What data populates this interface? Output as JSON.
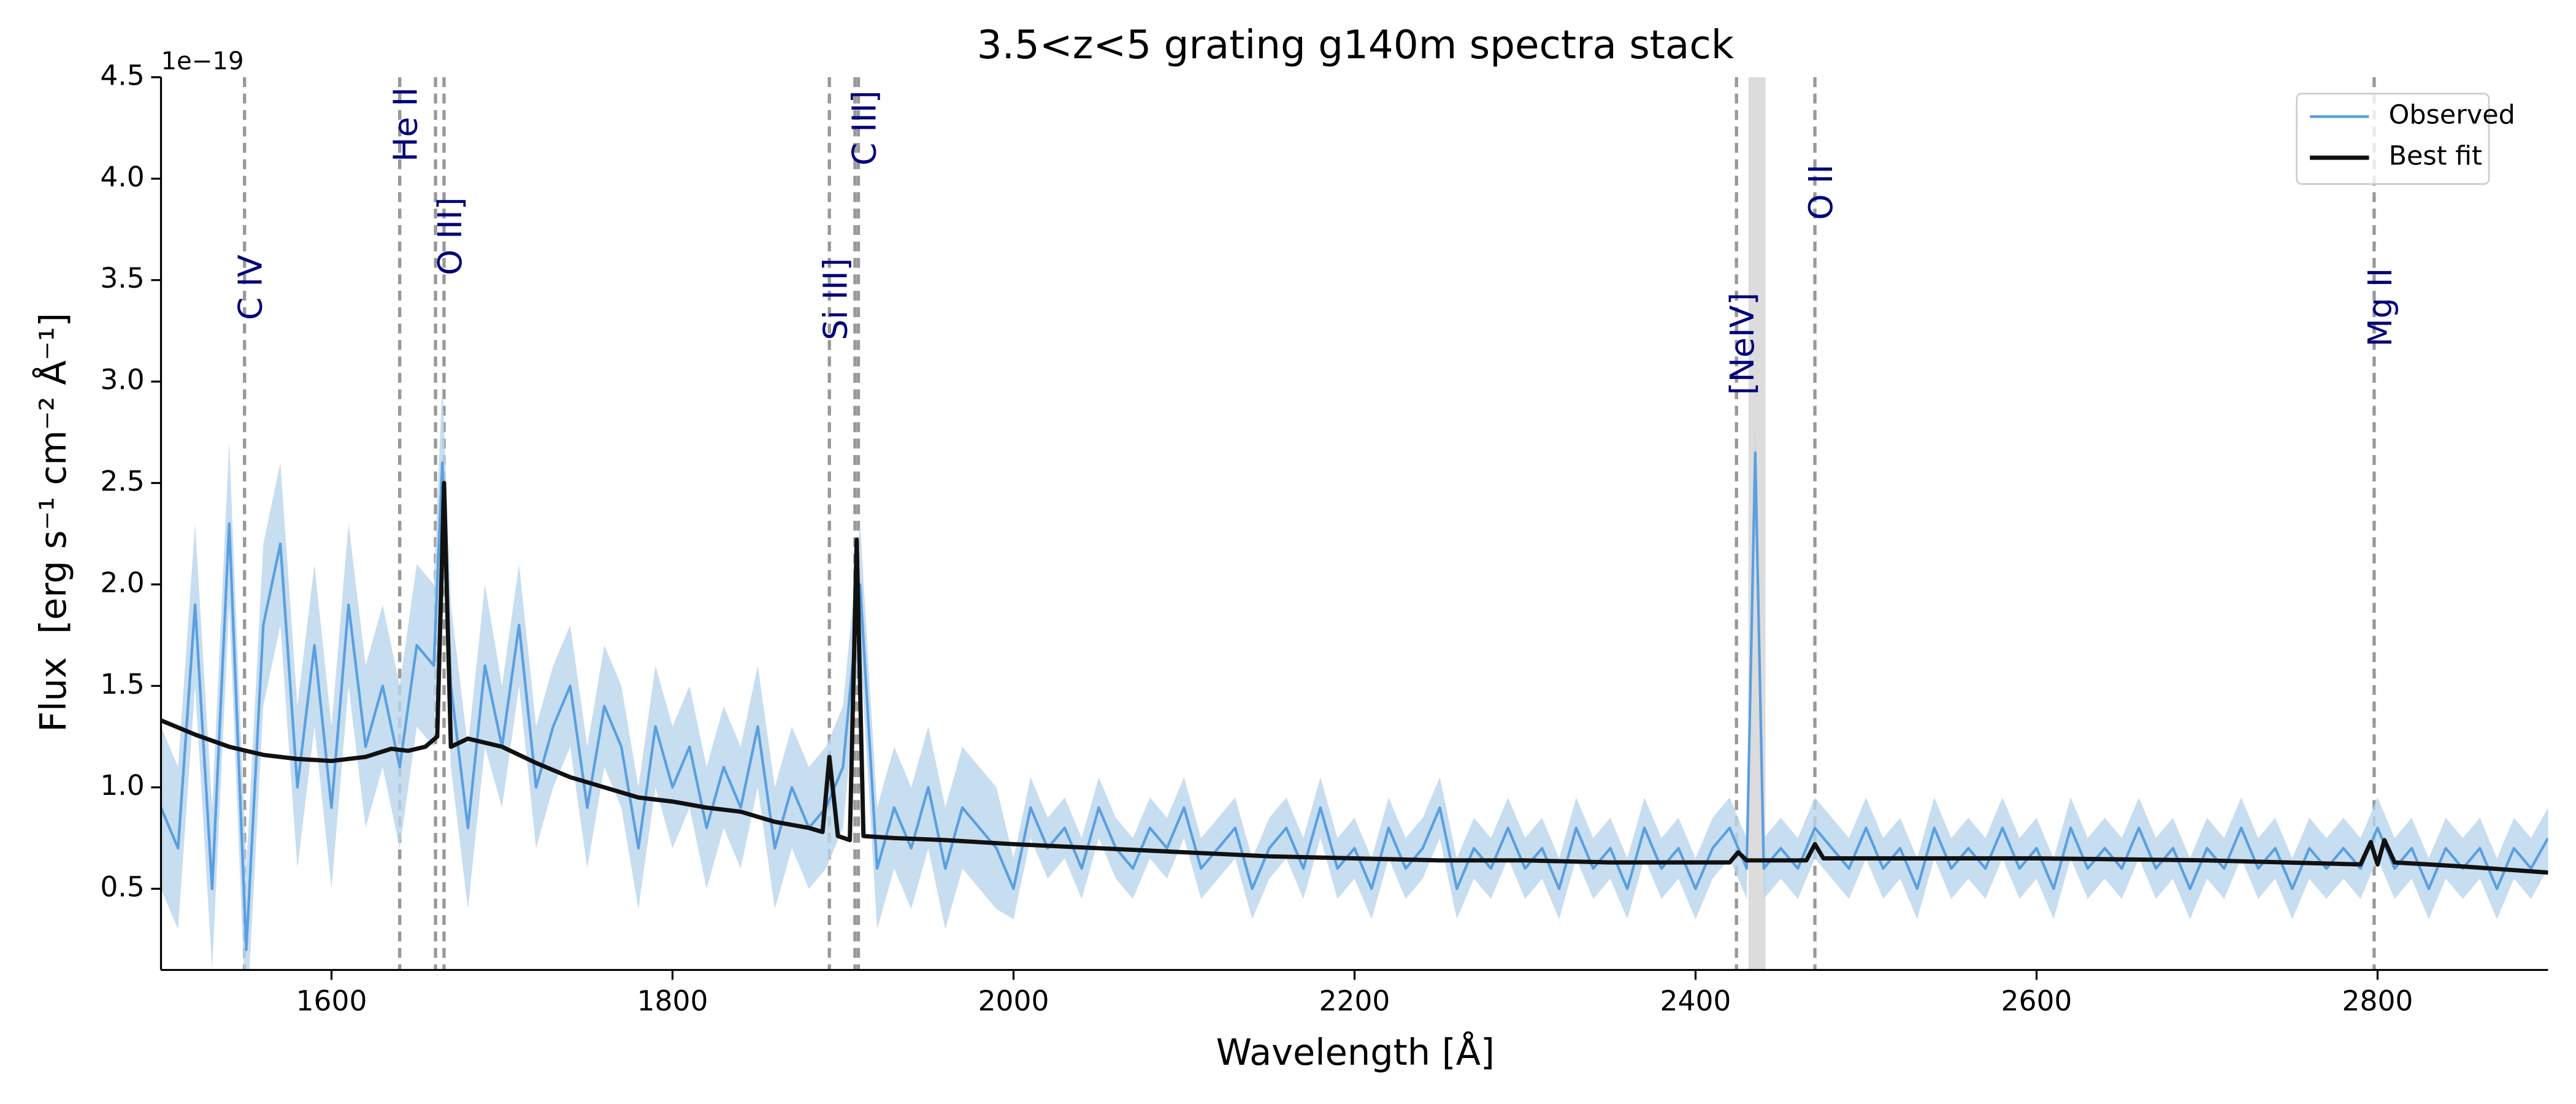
{
  "chart_data": {
    "type": "line",
    "title": "3.5<z<5 grating g140m spectra stack",
    "x_label": "Wavelength [Å]",
    "y_label": "Flux  [erg s⁻¹ cm⁻² Å⁻¹]",
    "y_offset_label": "1e−19",
    "xlim": [
      1500,
      2900
    ],
    "ylim": [
      0.1,
      4.5
    ],
    "xticks": [
      1600,
      1800,
      2000,
      2200,
      2400,
      2600,
      2800
    ],
    "yticks": [
      0.5,
      {
        "value": 1,
        "label": "1.0"
      },
      1.5,
      {
        "value": 2,
        "label": "2.0"
      },
      2.5,
      {
        "value": 3,
        "label": "3.0"
      },
      3.5,
      {
        "value": 4,
        "label": "4.0"
      },
      4.5
    ],
    "legend": "upper right",
    "series": [
      {
        "name": "Observed",
        "color": "#5a9fe0",
        "band_color": "#b9d5ec",
        "x": [
          1500,
          1510,
          1520,
          1530,
          1540,
          1550,
          1560,
          1570,
          1580,
          1590,
          1600,
          1610,
          1620,
          1630,
          1640,
          1650,
          1660,
          1665,
          1670,
          1680,
          1690,
          1700,
          1710,
          1720,
          1730,
          1740,
          1750,
          1760,
          1770,
          1780,
          1790,
          1800,
          1810,
          1820,
          1830,
          1840,
          1850,
          1860,
          1870,
          1880,
          1890,
          1900,
          1910,
          1920,
          1930,
          1940,
          1950,
          1960,
          1970,
          1980,
          1990,
          2000,
          2010,
          2020,
          2030,
          2040,
          2050,
          2060,
          2070,
          2080,
          2090,
          2100,
          2110,
          2120,
          2130,
          2140,
          2150,
          2160,
          2170,
          2180,
          2190,
          2200,
          2210,
          2220,
          2230,
          2240,
          2250,
          2260,
          2270,
          2280,
          2290,
          2300,
          2310,
          2320,
          2330,
          2340,
          2350,
          2360,
          2370,
          2380,
          2390,
          2400,
          2410,
          2420,
          2430,
          2435,
          2440,
          2450,
          2460,
          2470,
          2480,
          2490,
          2500,
          2510,
          2520,
          2530,
          2540,
          2550,
          2560,
          2570,
          2580,
          2590,
          2600,
          2610,
          2620,
          2630,
          2640,
          2650,
          2660,
          2670,
          2680,
          2690,
          2700,
          2710,
          2720,
          2730,
          2740,
          2750,
          2760,
          2770,
          2780,
          2790,
          2800,
          2810,
          2820,
          2830,
          2840,
          2850,
          2860,
          2870,
          2880,
          2890,
          2900
        ],
        "values": [
          0.9,
          0.7,
          1.9,
          0.5,
          2.3,
          0.2,
          1.8,
          2.2,
          1.0,
          1.7,
          0.9,
          1.9,
          1.2,
          1.5,
          1.1,
          1.7,
          1.6,
          2.6,
          1.5,
          0.8,
          1.6,
          1.2,
          1.8,
          1.0,
          1.3,
          1.5,
          0.9,
          1.4,
          1.2,
          0.7,
          1.3,
          1.0,
          1.2,
          0.8,
          1.1,
          0.9,
          1.3,
          0.7,
          1.0,
          0.8,
          0.9,
          1.1,
          2.0,
          0.6,
          0.9,
          0.7,
          1.0,
          0.6,
          0.9,
          0.8,
          0.7,
          0.5,
          0.9,
          0.7,
          0.8,
          0.6,
          0.9,
          0.7,
          0.6,
          0.8,
          0.7,
          0.9,
          0.6,
          0.7,
          0.8,
          0.5,
          0.7,
          0.8,
          0.6,
          0.9,
          0.6,
          0.7,
          0.5,
          0.8,
          0.6,
          0.7,
          0.9,
          0.5,
          0.7,
          0.6,
          0.8,
          0.6,
          0.7,
          0.5,
          0.8,
          0.6,
          0.7,
          0.5,
          0.8,
          0.6,
          0.7,
          0.5,
          0.7,
          0.8,
          0.6,
          2.65,
          0.6,
          0.7,
          0.6,
          0.8,
          0.7,
          0.6,
          0.8,
          0.6,
          0.7,
          0.5,
          0.8,
          0.6,
          0.7,
          0.6,
          0.8,
          0.6,
          0.7,
          0.5,
          0.8,
          0.6,
          0.7,
          0.6,
          0.8,
          0.6,
          0.7,
          0.5,
          0.7,
          0.6,
          0.8,
          0.6,
          0.7,
          0.5,
          0.7,
          0.6,
          0.7,
          0.6,
          0.8,
          0.6,
          0.7,
          0.5,
          0.7,
          0.6,
          0.7,
          0.5,
          0.7,
          0.6,
          0.75
        ],
        "errors": [
          0.4,
          0.4,
          0.4,
          0.4,
          0.4,
          0.4,
          0.4,
          0.4,
          0.4,
          0.4,
          0.4,
          0.4,
          0.4,
          0.4,
          0.4,
          0.4,
          0.4,
          0.4,
          0.4,
          0.4,
          0.4,
          0.3,
          0.3,
          0.3,
          0.3,
          0.3,
          0.3,
          0.3,
          0.3,
          0.3,
          0.3,
          0.3,
          0.3,
          0.3,
          0.3,
          0.3,
          0.3,
          0.3,
          0.3,
          0.3,
          0.3,
          0.3,
          0.3,
          0.3,
          0.3,
          0.3,
          0.3,
          0.3,
          0.3,
          0.3,
          0.3,
          0.15,
          0.15,
          0.15,
          0.15,
          0.15,
          0.15,
          0.15,
          0.15,
          0.15,
          0.15,
          0.15,
          0.15,
          0.15,
          0.15,
          0.15,
          0.15,
          0.15,
          0.15,
          0.15,
          0.15,
          0.15,
          0.15,
          0.15,
          0.15,
          0.15,
          0.15,
          0.15,
          0.15,
          0.15,
          0.15,
          0.15,
          0.15,
          0.15,
          0.15,
          0.15,
          0.15,
          0.15,
          0.15,
          0.15,
          0.15,
          0.15,
          0.15,
          0.15,
          0.15,
          0.15,
          0.15,
          0.15,
          0.15,
          0.15,
          0.15,
          0.15,
          0.15,
          0.15,
          0.15,
          0.15,
          0.15,
          0.15,
          0.15,
          0.15,
          0.15,
          0.15,
          0.15,
          0.15,
          0.15,
          0.15,
          0.15,
          0.15,
          0.15,
          0.15,
          0.15,
          0.15,
          0.15,
          0.15,
          0.15,
          0.15,
          0.15,
          0.15,
          0.15,
          0.15,
          0.15,
          0.15,
          0.15,
          0.15,
          0.15,
          0.15,
          0.15,
          0.15,
          0.15,
          0.15,
          0.15,
          0.15,
          0.15
        ]
      },
      {
        "name": "Best fit",
        "color": "#111111",
        "x": [
          1500,
          1520,
          1540,
          1560,
          1580,
          1600,
          1620,
          1635,
          1645,
          1655,
          1662,
          1666,
          1670,
          1680,
          1700,
          1720,
          1740,
          1760,
          1780,
          1800,
          1820,
          1840,
          1860,
          1880,
          1888,
          1892,
          1897,
          1904,
          1908,
          1912,
          1930,
          1960,
          2000,
          2050,
          2100,
          2150,
          2200,
          2250,
          2300,
          2350,
          2400,
          2420,
          2425,
          2430,
          2465,
          2470,
          2475,
          2500,
          2600,
          2700,
          2790,
          2796,
          2800,
          2804,
          2810,
          2850,
          2900
        ],
        "values": [
          1.33,
          1.26,
          1.2,
          1.16,
          1.14,
          1.13,
          1.15,
          1.19,
          1.18,
          1.2,
          1.25,
          2.5,
          1.2,
          1.24,
          1.2,
          1.12,
          1.05,
          1.0,
          0.95,
          0.93,
          0.9,
          0.88,
          0.83,
          0.8,
          0.78,
          1.15,
          0.76,
          0.74,
          2.22,
          0.76,
          0.75,
          0.74,
          0.72,
          0.7,
          0.68,
          0.66,
          0.65,
          0.64,
          0.64,
          0.63,
          0.63,
          0.63,
          0.68,
          0.64,
          0.64,
          0.72,
          0.65,
          0.65,
          0.65,
          0.64,
          0.62,
          0.73,
          0.62,
          0.74,
          0.63,
          0.61,
          0.58
        ]
      }
    ],
    "lines": [
      {
        "label": "C IV",
        "x": [
          1549
        ]
      },
      {
        "label": "He II",
        "x": [
          1640
        ]
      },
      {
        "label": "O III]",
        "x": [
          1661,
          1666
        ]
      },
      {
        "label": "Si III]",
        "x": [
          1892
        ]
      },
      {
        "label": "C III]",
        "x": [
          1907,
          1909
        ]
      },
      {
        "label": "[NeIV]",
        "x": [
          2424
        ]
      },
      {
        "label": "O II",
        "x": [
          2470
        ]
      },
      {
        "label": "Mg II",
        "x": [
          2798
        ]
      }
    ],
    "masked": [
      2431,
      2441
    ]
  }
}
